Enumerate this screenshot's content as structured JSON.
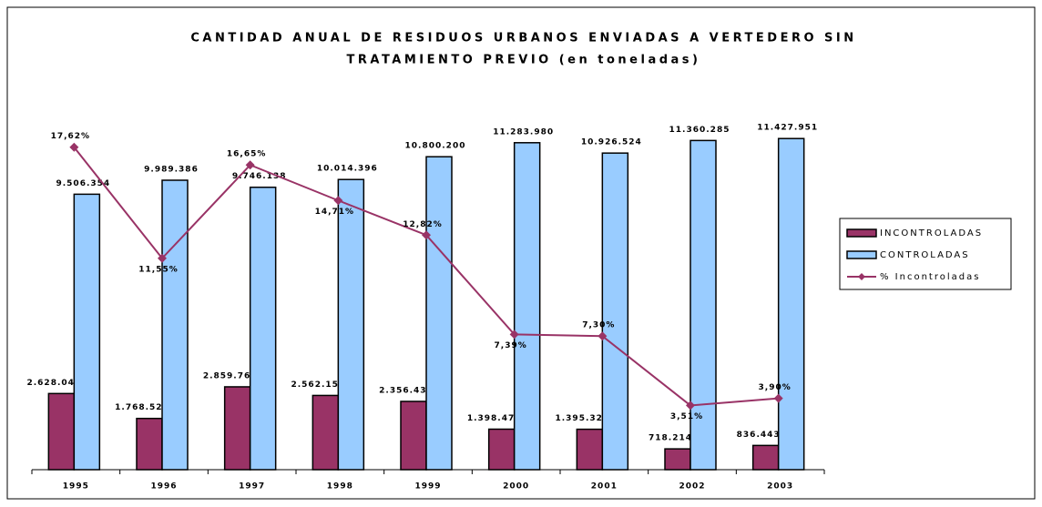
{
  "chart_data": {
    "type": "bar_line",
    "title": "CANTIDAD ANUAL DE RESIDUOS URBANOS ENVIADAS A VERTEDERO SIN",
    "subtitle": "TRATAMIENTO PREVIO (en toneladas)",
    "categories": [
      "1995",
      "1996",
      "1997",
      "1998",
      "1999",
      "2000",
      "2001",
      "2002",
      "2003"
    ],
    "ylim": [
      0,
      12000000
    ],
    "y2lim": [
      0,
      19
    ],
    "legend": "right",
    "series": [
      {
        "name": "INCONTROLADAS",
        "color": "#993366",
        "type": "bar",
        "values": [
          2628043,
          1768525,
          2859765,
          2562151,
          2356434,
          1398472,
          1395323,
          718214,
          836443
        ],
        "value_labels": [
          "2.628.043",
          "1.768.525",
          "2.859.765",
          "2.562.151",
          "2.356.434",
          "1.398.472",
          "1.395.323",
          "718.214",
          "836.443"
        ]
      },
      {
        "name": "CONTROLADAS",
        "color": "#99ccff",
        "type": "bar",
        "values": [
          9506354,
          9989386,
          9746138,
          10014396,
          10800200,
          11283980,
          10926524,
          11360285,
          11427951
        ],
        "value_labels": [
          "9.506.354",
          "9.989.386",
          "9.746.138",
          "10.014.396",
          "10.800.200",
          "11.283.980",
          "10.926.524",
          "11.360.285",
          "11.427.951"
        ]
      },
      {
        "name": "% Incontroladas",
        "color": "#993366",
        "type": "line",
        "axis": "y2",
        "values": [
          17.62,
          11.55,
          16.65,
          14.71,
          12.82,
          7.39,
          7.3,
          3.51,
          3.9
        ],
        "value_labels": [
          "17,62%",
          "11,55%",
          "16,65%",
          "14,71%",
          "12,82%",
          "7,39%",
          "7,30%",
          "3,51%",
          "3,90%"
        ]
      }
    ]
  }
}
